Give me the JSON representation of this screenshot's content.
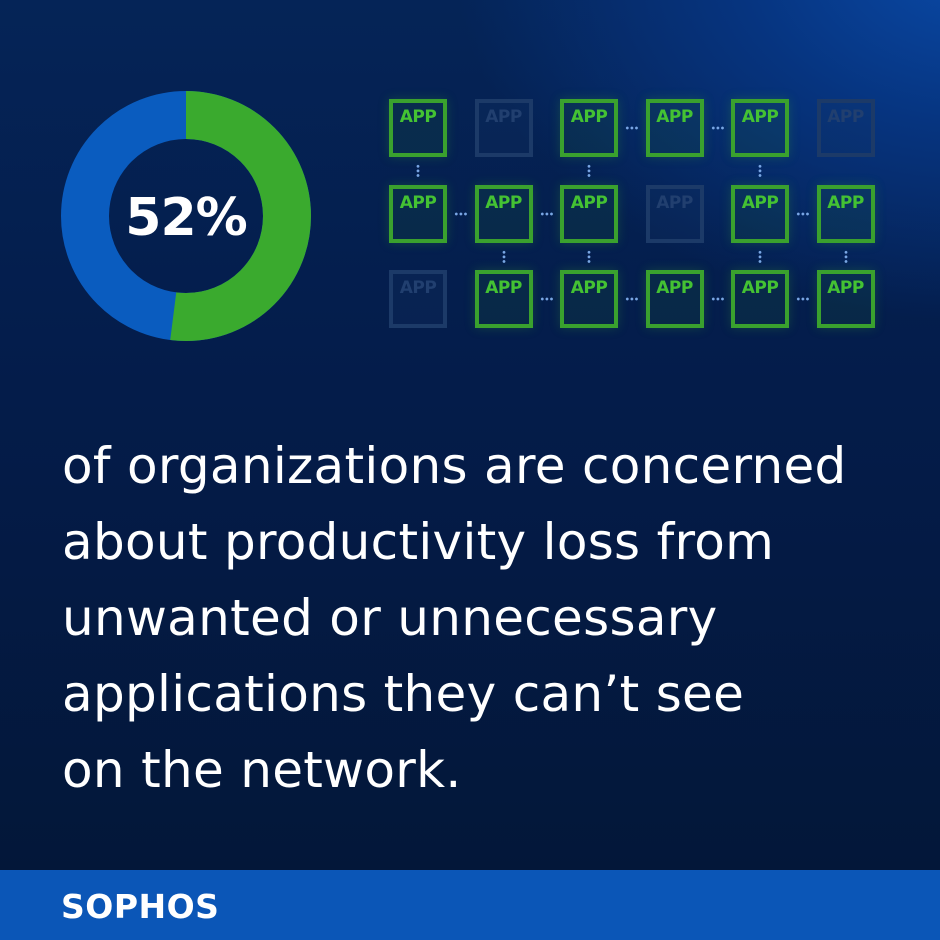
{
  "stat": {
    "value_label": "52%",
    "percent": 52,
    "colors": {
      "highlight": "#3aaa2e",
      "remainder": "#0a5cbf",
      "background": "#041a45"
    }
  },
  "app_grid": {
    "box_label": "APP",
    "rows": [
      [
        "on",
        "off",
        "on",
        "on",
        "on",
        "off"
      ],
      [
        "on",
        "on",
        "on",
        "off",
        "on",
        "on"
      ],
      [
        "off",
        "on",
        "on",
        "on",
        "on",
        "on"
      ]
    ],
    "colors": {
      "active": "#3aa12e",
      "inactive": "#1c3a68",
      "connector": "#7aa7e6"
    }
  },
  "statement": {
    "lines": [
      "of organizations are concerned",
      "about productivity loss from",
      "unwanted or unnecessary",
      "applications they can’t see",
      "on the network."
    ]
  },
  "footer": {
    "brand": "SOPHOS",
    "color": "#0b56b7"
  }
}
